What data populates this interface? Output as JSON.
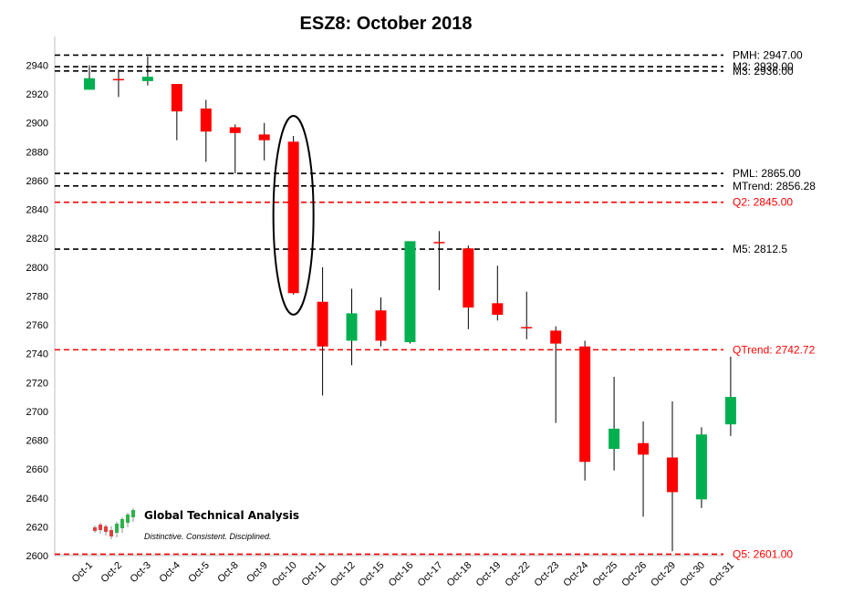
{
  "chart_data": {
    "type": "candlestick",
    "title": "ESZ8: October 2018",
    "xlabel": "",
    "ylabel": "",
    "ylim": [
      2600,
      2950
    ],
    "yticks": [
      2600,
      2620,
      2640,
      2660,
      2680,
      2700,
      2720,
      2740,
      2760,
      2780,
      2800,
      2820,
      2840,
      2860,
      2880,
      2900,
      2920,
      2940
    ],
    "grid": false,
    "up_color": "#00b050",
    "down_color": "#ff0000",
    "neutral_color": "#ff0000",
    "candles": [
      {
        "date": "Oct-1",
        "open": 2923,
        "high": 2940,
        "low": 2923,
        "close": 2931
      },
      {
        "date": "Oct-2",
        "open": 2930,
        "high": 2937,
        "low": 2918,
        "close": 2930
      },
      {
        "date": "Oct-3",
        "open": 2929,
        "high": 2946,
        "low": 2926,
        "close": 2932
      },
      {
        "date": "Oct-4",
        "open": 2927,
        "high": 2927,
        "low": 2888,
        "close": 2908
      },
      {
        "date": "Oct-5",
        "open": 2910,
        "high": 2916,
        "low": 2873,
        "close": 2894
      },
      {
        "date": "Oct-8",
        "open": 2897,
        "high": 2899,
        "low": 2865,
        "close": 2893
      },
      {
        "date": "Oct-9",
        "open": 2892,
        "high": 2900,
        "low": 2874,
        "close": 2888
      },
      {
        "date": "Oct-10",
        "open": 2887,
        "high": 2891,
        "low": 2781,
        "close": 2782
      },
      {
        "date": "Oct-11",
        "open": 2776,
        "high": 2800,
        "low": 2711,
        "close": 2745
      },
      {
        "date": "Oct-12",
        "open": 2749,
        "high": 2785,
        "low": 2732,
        "close": 2768
      },
      {
        "date": "Oct-15",
        "open": 2770,
        "high": 2779,
        "low": 2745,
        "close": 2749
      },
      {
        "date": "Oct-16",
        "open": 2748,
        "high": 2818,
        "low": 2747,
        "close": 2818
      },
      {
        "date": "Oct-17",
        "open": 2817,
        "high": 2825,
        "low": 2784,
        "close": 2817
      },
      {
        "date": "Oct-18",
        "open": 2813,
        "high": 2815,
        "low": 2757,
        "close": 2772
      },
      {
        "date": "Oct-19",
        "open": 2775,
        "high": 2801,
        "low": 2763,
        "close": 2767
      },
      {
        "date": "Oct-22",
        "open": 2758,
        "high": 2783,
        "low": 2750,
        "close": 2757
      },
      {
        "date": "Oct-23",
        "open": 2756,
        "high": 2759,
        "low": 2692,
        "close": 2747
      },
      {
        "date": "Oct-24",
        "open": 2745,
        "high": 2749,
        "low": 2652,
        "close": 2665
      },
      {
        "date": "Oct-25",
        "open": 2674,
        "high": 2724,
        "low": 2659,
        "close": 2688
      },
      {
        "date": "Oct-26",
        "open": 2678,
        "high": 2693,
        "low": 2627,
        "close": 2670
      },
      {
        "date": "Oct-29",
        "open": 2668,
        "high": 2707,
        "low": 2603,
        "close": 2644
      },
      {
        "date": "Oct-30",
        "open": 2639,
        "high": 2689,
        "low": 2633,
        "close": 2684
      },
      {
        "date": "Oct-31",
        "open": 2691,
        "high": 2738,
        "low": 2683,
        "close": 2710
      }
    ],
    "levels": [
      {
        "label": "PMH: 2947.00",
        "value": 2947.0,
        "color": "#000000"
      },
      {
        "label": "M2: 2939.00",
        "value": 2939.0,
        "color": "#000000"
      },
      {
        "label": "M3: 2936.00",
        "value": 2936.0,
        "color": "#000000"
      },
      {
        "label": "PML: 2865.00",
        "value": 2865.0,
        "color": "#000000"
      },
      {
        "label": "MTrend: 2856.28",
        "value": 2856.28,
        "color": "#000000"
      },
      {
        "label": "Q2:  2845.00",
        "value": 2845.0,
        "color": "#ff0000"
      },
      {
        "label": "M5: 2812.5",
        "value": 2812.5,
        "color": "#000000"
      },
      {
        "label": "QTrend:  2742.72",
        "value": 2742.72,
        "color": "#ff0000"
      },
      {
        "label": "Q5:  2601.00",
        "value": 2601.0,
        "color": "#ff0000"
      }
    ],
    "annotations": [
      {
        "type": "ellipse",
        "target": "Oct-10"
      }
    ]
  },
  "brand": {
    "name": "Global Technical Analysis",
    "tagline": "Distinctive. Consistent. Disciplined."
  }
}
